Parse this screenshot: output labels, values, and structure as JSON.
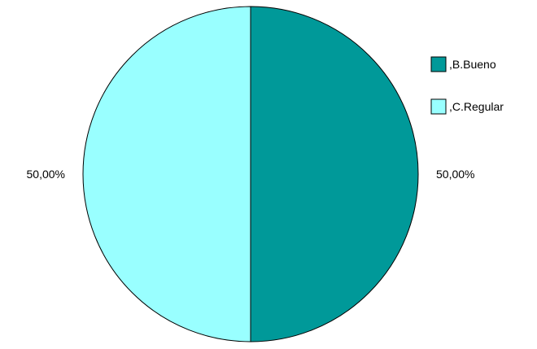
{
  "chart_data": {
    "type": "pie",
    "slices": [
      {
        "name": ",B.Bueno",
        "value": 50,
        "label": "50,00%",
        "color": "#009999"
      },
      {
        "name": ",C.Regular",
        "value": 50,
        "label": "50,00%",
        "color": "#99ffff"
      }
    ],
    "start_angle_deg": 0,
    "direction": "clockwise",
    "legend_position": "right"
  }
}
